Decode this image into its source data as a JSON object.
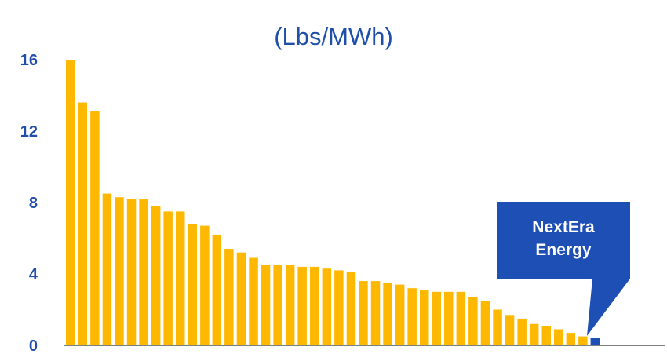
{
  "chart_data": {
    "type": "bar",
    "title": "(Lbs/MWh)",
    "xlabel": "",
    "ylabel": "",
    "ylim": [
      0,
      16
    ],
    "yticks": [
      0,
      4,
      8,
      12,
      16
    ],
    "grid": false,
    "legend": "none",
    "colors": {
      "bar": "#FFB800",
      "highlight": "#1E4FB4",
      "text": "#1F4FA8",
      "axis": "#7F7F7F"
    },
    "values": [
      16.0,
      13.6,
      13.1,
      8.5,
      8.3,
      8.2,
      8.2,
      7.8,
      7.5,
      7.5,
      6.8,
      6.7,
      6.2,
      5.4,
      5.2,
      4.9,
      4.5,
      4.5,
      4.5,
      4.4,
      4.4,
      4.3,
      4.2,
      4.1,
      3.6,
      3.6,
      3.5,
      3.4,
      3.2,
      3.1,
      3.0,
      3.0,
      3.0,
      2.7,
      2.5,
      2.0,
      1.7,
      1.5,
      1.2,
      1.1,
      0.9,
      0.7,
      0.5,
      0.4
    ],
    "highlight_index": 43,
    "annotation": {
      "line1": "NextEra",
      "line2": "Energy"
    }
  }
}
